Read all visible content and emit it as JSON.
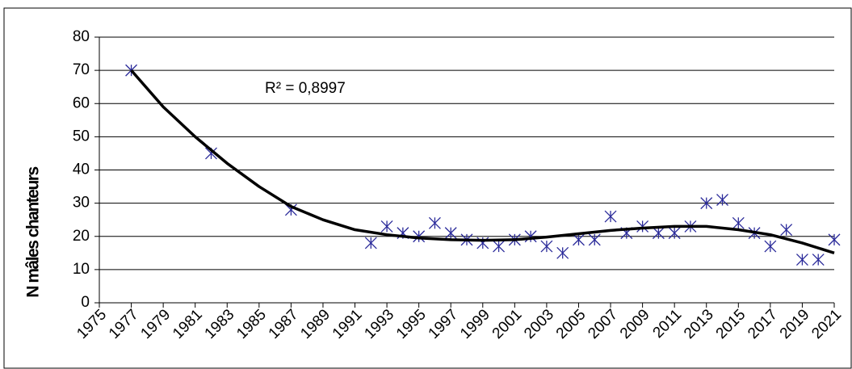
{
  "chart_data": {
    "type": "scatter",
    "y_label": "N mâles chanteurs",
    "annotation": "R² = 0,8997",
    "series": [
      {
        "color": "#2b2b9a",
        "marker": "asterisk",
        "x": [
          1977,
          1982,
          1987,
          1992,
          1993,
          1994,
          1995,
          1996,
          1997,
          1998,
          1999,
          2000,
          2001,
          2002,
          2003,
          2004,
          2005,
          2006,
          2007,
          2008,
          2009,
          2010,
          2011,
          2012,
          2013,
          2014,
          2015,
          2016,
          2017,
          2018,
          2019,
          2020,
          2021
        ],
        "values": [
          70,
          45,
          28,
          18,
          23,
          21,
          20,
          24,
          21,
          19,
          18,
          17,
          19,
          20,
          17,
          15,
          19,
          19,
          26,
          21,
          23,
          21,
          21,
          23,
          30,
          31,
          24,
          21,
          17,
          22,
          13,
          13,
          19
        ]
      },
      {
        "color": "#000000",
        "line": true,
        "x": [
          1977,
          1979,
          1981,
          1983,
          1985,
          1987,
          1989,
          1991,
          1993,
          1995,
          1997,
          1999,
          2001,
          2003,
          2005,
          2007,
          2009,
          2011,
          2013,
          2015,
          2017,
          2019,
          2021
        ],
        "values": [
          70,
          59,
          50,
          42,
          35,
          29,
          25,
          22,
          20.5,
          19.5,
          19,
          18.8,
          19,
          19.8,
          20.8,
          21.8,
          22.5,
          23,
          23,
          22,
          20.5,
          18,
          15
        ]
      }
    ],
    "xlim": [
      1975,
      2021
    ],
    "xticks": [
      1975,
      1977,
      1979,
      1981,
      1983,
      1985,
      1987,
      1989,
      1991,
      1993,
      1995,
      1997,
      1999,
      2001,
      2003,
      2005,
      2007,
      2009,
      2011,
      2013,
      2015,
      2017,
      2019,
      2021
    ],
    "ylim": [
      0,
      80
    ],
    "yticks": [
      0,
      10,
      20,
      30,
      40,
      50,
      60,
      70,
      80
    ],
    "grid": true
  }
}
